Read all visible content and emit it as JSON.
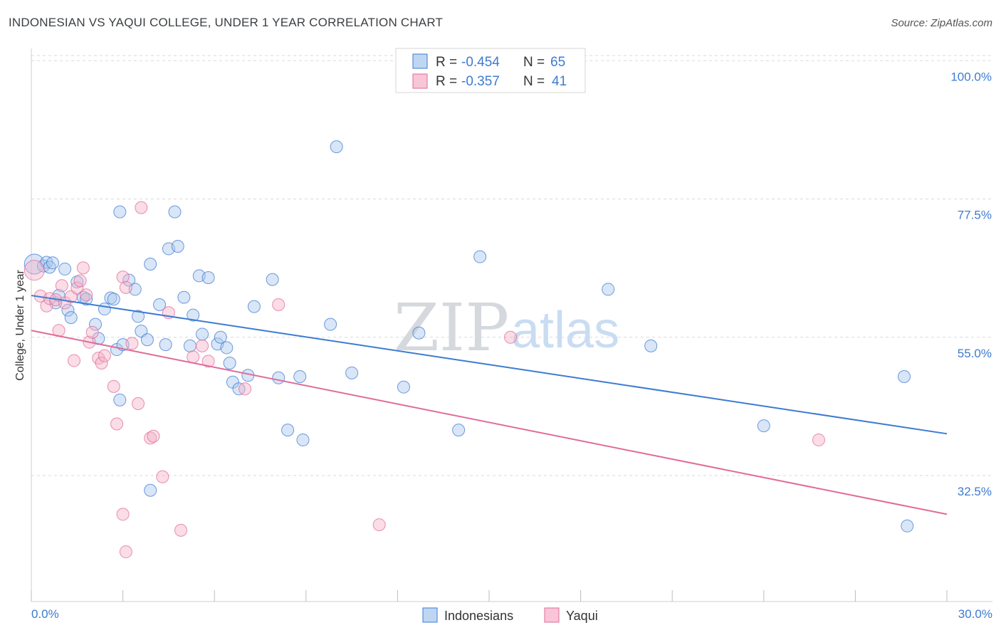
{
  "title": "INDONESIAN VS YAQUI COLLEGE, UNDER 1 YEAR CORRELATION CHART",
  "source": "Source: ZipAtlas.com",
  "watermark": {
    "zip": "ZIP",
    "atlas": "atlas"
  },
  "colors": {
    "blue": "#3d7bd1",
    "blue_fill": "#aac8ee",
    "pink": "#e06b9a",
    "pink_fill": "#f5b3c8",
    "grid": "#d9d9d9"
  },
  "legend": {
    "r_label": "R =",
    "n_label": "N =",
    "rows": [
      {
        "r": "-0.454",
        "n": "65"
      },
      {
        "r": "-0.357",
        "n": "41"
      }
    ]
  },
  "chart_data": {
    "type": "scatter",
    "title": "INDONESIAN VS YAQUI COLLEGE, UNDER 1 YEAR CORRELATION CHART",
    "xlabel": "",
    "ylabel": "College, Under 1 year",
    "xlim": [
      0,
      30
    ],
    "ylim": [
      12,
      102
    ],
    "x_tick_labels": [
      "0.0%",
      "30.0%"
    ],
    "y_ticks": [
      32.5,
      55.0,
      77.5,
      100.0
    ],
    "y_tick_labels": [
      "32.5%",
      "55.0%",
      "77.5%",
      "100.0%"
    ],
    "series": [
      {
        "name": "Indonesians",
        "r": -0.454,
        "n": 65,
        "trend": {
          "x": [
            0,
            30
          ],
          "y": [
            61.8,
            39.3
          ]
        },
        "points": [
          [
            0.1,
            66.9
          ],
          [
            0.4,
            66.6
          ],
          [
            0.5,
            67.2
          ],
          [
            0.6,
            66.4
          ],
          [
            0.7,
            67.1
          ],
          [
            0.8,
            60.6
          ],
          [
            0.9,
            61.8
          ],
          [
            1.1,
            66.1
          ],
          [
            1.2,
            59.4
          ],
          [
            1.3,
            58.2
          ],
          [
            1.5,
            64.0
          ],
          [
            1.7,
            61.5
          ],
          [
            1.8,
            61.2
          ],
          [
            2.1,
            57.1
          ],
          [
            2.2,
            54.8
          ],
          [
            2.4,
            59.6
          ],
          [
            2.6,
            61.4
          ],
          [
            2.7,
            61.2
          ],
          [
            2.8,
            53.0
          ],
          [
            2.9,
            44.8
          ],
          [
            3.0,
            53.8
          ],
          [
            3.2,
            64.3
          ],
          [
            3.4,
            62.8
          ],
          [
            3.5,
            58.4
          ],
          [
            3.6,
            56.0
          ],
          [
            3.8,
            54.6
          ],
          [
            3.9,
            66.9
          ],
          [
            4.2,
            60.3
          ],
          [
            4.4,
            53.8
          ],
          [
            4.5,
            69.4
          ],
          [
            4.7,
            75.4
          ],
          [
            4.8,
            69.8
          ],
          [
            5.0,
            61.5
          ],
          [
            5.2,
            53.6
          ],
          [
            5.3,
            58.6
          ],
          [
            5.5,
            65.0
          ],
          [
            5.6,
            55.5
          ],
          [
            5.8,
            64.7
          ],
          [
            6.1,
            53.9
          ],
          [
            6.2,
            55.0
          ],
          [
            6.4,
            53.3
          ],
          [
            6.5,
            50.8
          ],
          [
            6.6,
            47.7
          ],
          [
            6.8,
            46.6
          ],
          [
            7.1,
            48.8
          ],
          [
            7.3,
            60.0
          ],
          [
            7.9,
            64.4
          ],
          [
            8.1,
            48.4
          ],
          [
            8.4,
            39.9
          ],
          [
            8.8,
            48.6
          ],
          [
            8.9,
            38.3
          ],
          [
            9.8,
            57.1
          ],
          [
            10.0,
            86.0
          ],
          [
            10.5,
            49.2
          ],
          [
            12.2,
            46.9
          ],
          [
            12.7,
            55.7
          ],
          [
            14.0,
            39.9
          ],
          [
            14.7,
            68.1
          ],
          [
            18.9,
            62.8
          ],
          [
            20.3,
            53.6
          ],
          [
            24.0,
            40.6
          ],
          [
            28.6,
            48.6
          ],
          [
            28.7,
            24.3
          ],
          [
            2.9,
            75.4
          ],
          [
            3.9,
            30.1
          ]
        ]
      },
      {
        "name": "Yaqui",
        "r": -0.357,
        "n": 41,
        "trend": {
          "x": [
            0,
            30
          ],
          "y": [
            56.1,
            26.2
          ]
        },
        "points": [
          [
            0.1,
            65.9
          ],
          [
            0.3,
            61.7
          ],
          [
            0.5,
            60.1
          ],
          [
            0.6,
            61.3
          ],
          [
            0.8,
            61.1
          ],
          [
            0.9,
            56.1
          ],
          [
            1.0,
            63.4
          ],
          [
            1.1,
            60.6
          ],
          [
            1.3,
            61.6
          ],
          [
            1.4,
            51.2
          ],
          [
            1.5,
            63.0
          ],
          [
            1.6,
            64.2
          ],
          [
            1.7,
            66.3
          ],
          [
            1.8,
            61.9
          ],
          [
            1.9,
            54.2
          ],
          [
            2.0,
            55.8
          ],
          [
            2.2,
            51.6
          ],
          [
            2.3,
            50.8
          ],
          [
            2.4,
            52.0
          ],
          [
            2.7,
            47.0
          ],
          [
            2.8,
            40.9
          ],
          [
            3.0,
            64.8
          ],
          [
            3.1,
            63.1
          ],
          [
            3.3,
            54.0
          ],
          [
            3.5,
            44.2
          ],
          [
            3.6,
            76.1
          ],
          [
            3.9,
            38.6
          ],
          [
            4.0,
            38.9
          ],
          [
            4.3,
            32.3
          ],
          [
            4.5,
            59.0
          ],
          [
            5.3,
            51.8
          ],
          [
            5.6,
            53.6
          ],
          [
            5.8,
            51.1
          ],
          [
            7.0,
            46.6
          ],
          [
            8.1,
            60.3
          ],
          [
            11.4,
            24.5
          ],
          [
            15.7,
            55.0
          ],
          [
            25.8,
            38.3
          ],
          [
            3.0,
            26.2
          ],
          [
            3.1,
            20.1
          ],
          [
            4.9,
            23.6
          ]
        ]
      }
    ]
  }
}
